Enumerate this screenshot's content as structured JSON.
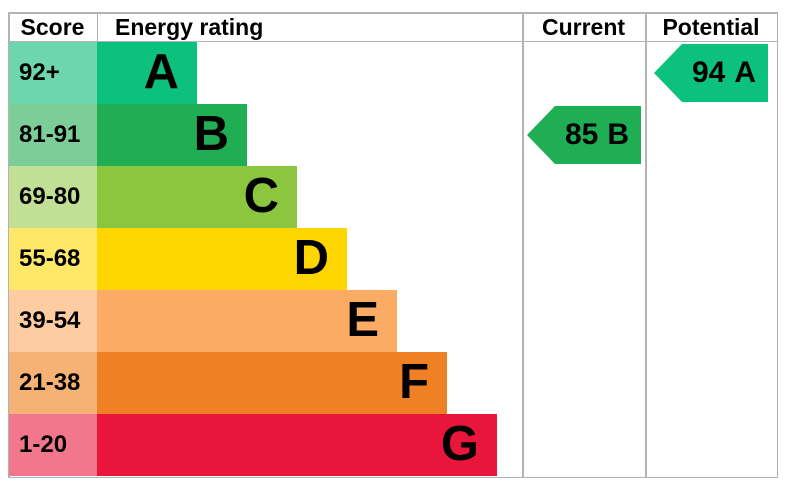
{
  "chart_data": {
    "type": "bar",
    "subtype": "epc-energy-rating-chart",
    "orientation": "horizontal",
    "headers": {
      "score": "Score",
      "rating": "Energy rating",
      "current": "Current",
      "potential": "Potential"
    },
    "bands": [
      {
        "letter": "A",
        "score_range": "92+",
        "color": "#0cc07d",
        "score_bg": "#6ed6ae"
      },
      {
        "letter": "B",
        "score_range": "81-91",
        "color": "#1fae54",
        "score_bg": "#7ccd97"
      },
      {
        "letter": "C",
        "score_range": "69-80",
        "color": "#8bc63e",
        "score_bg": "#c2e095"
      },
      {
        "letter": "D",
        "score_range": "55-68",
        "color": "#ffd500",
        "score_bg": "#ffe768"
      },
      {
        "letter": "E",
        "score_range": "39-54",
        "color": "#fbab64",
        "score_bg": "#fdcda1"
      },
      {
        "letter": "F",
        "score_range": "21-38",
        "color": "#ef8023",
        "score_bg": "#f5b274"
      },
      {
        "letter": "G",
        "score_range": "1-20",
        "color": "#e9153b",
        "score_bg": "#f2778d"
      }
    ],
    "current": {
      "value": "85",
      "letter": "B"
    },
    "potential": {
      "value": "94",
      "letter": "A"
    },
    "colors": {
      "border": "#b3b3b3",
      "text": "#000000",
      "background": "#ffffff"
    }
  }
}
